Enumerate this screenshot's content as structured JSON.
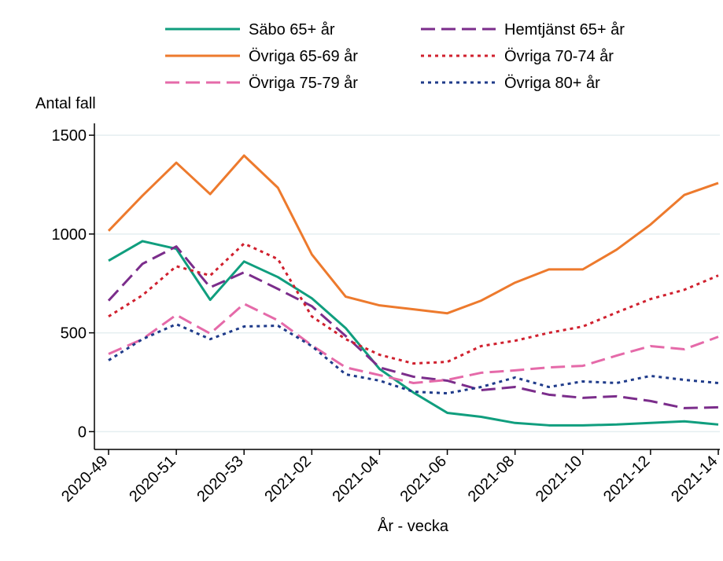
{
  "chart_data": {
    "type": "line",
    "y_label": "Antal fall",
    "x_label": "År - vecka",
    "categories": [
      "2020-49",
      null,
      "2020-51",
      null,
      "2020-53",
      null,
      "2021-02",
      null,
      "2021-04",
      null,
      "2021-06",
      null,
      "2021-08",
      null,
      "2021-10",
      null,
      "2021-12",
      null,
      "2021-14"
    ],
    "series": [
      {
        "name": "Säbo 65+ år",
        "color": "#109e7e",
        "dash": "solid",
        "values": [
          865,
          964,
          925,
          667,
          861,
          782,
          675,
          524,
          317,
          198,
          95,
          75,
          44,
          32,
          32,
          36,
          44,
          52,
          36
        ]
      },
      {
        "name": "Hemtjänst 65+ år",
        "color": "#7b2d8b",
        "dash": "dash",
        "values": [
          663,
          849,
          937,
          730,
          806,
          722,
          635,
          484,
          325,
          278,
          258,
          210,
          226,
          187,
          171,
          179,
          155,
          119,
          123
        ]
      },
      {
        "name": "Övriga 65-69 år",
        "color": "#ed7a2d",
        "dash": "solid",
        "values": [
          1016,
          1194,
          1361,
          1202,
          1397,
          1234,
          897,
          683,
          639,
          619,
          599,
          663,
          754,
          821,
          821,
          921,
          1048,
          1198,
          1258
        ]
      },
      {
        "name": "Övriga 70-74 år",
        "color": "#d0202e",
        "dash": "dot",
        "values": [
          583,
          690,
          837,
          790,
          952,
          873,
          583,
          468,
          389,
          345,
          353,
          433,
          460,
          500,
          532,
          603,
          671,
          718,
          790
        ]
      },
      {
        "name": "Övriga 75-79 år",
        "color": "#e56aa9",
        "dash": "dash",
        "values": [
          393,
          468,
          591,
          496,
          647,
          563,
          437,
          325,
          286,
          246,
          262,
          298,
          310,
          325,
          333,
          385,
          433,
          417,
          480
        ]
      },
      {
        "name": "Övriga 80+ år",
        "color": "#1f3b8a",
        "dash": "dot",
        "values": [
          361,
          468,
          544,
          468,
          532,
          536,
          433,
          290,
          258,
          202,
          194,
          226,
          274,
          226,
          254,
          246,
          282,
          262,
          246
        ]
      }
    ],
    "ylim": [
      -90,
      1560
    ],
    "yticks": [
      0,
      500,
      1000,
      1500
    ],
    "grid": true
  }
}
